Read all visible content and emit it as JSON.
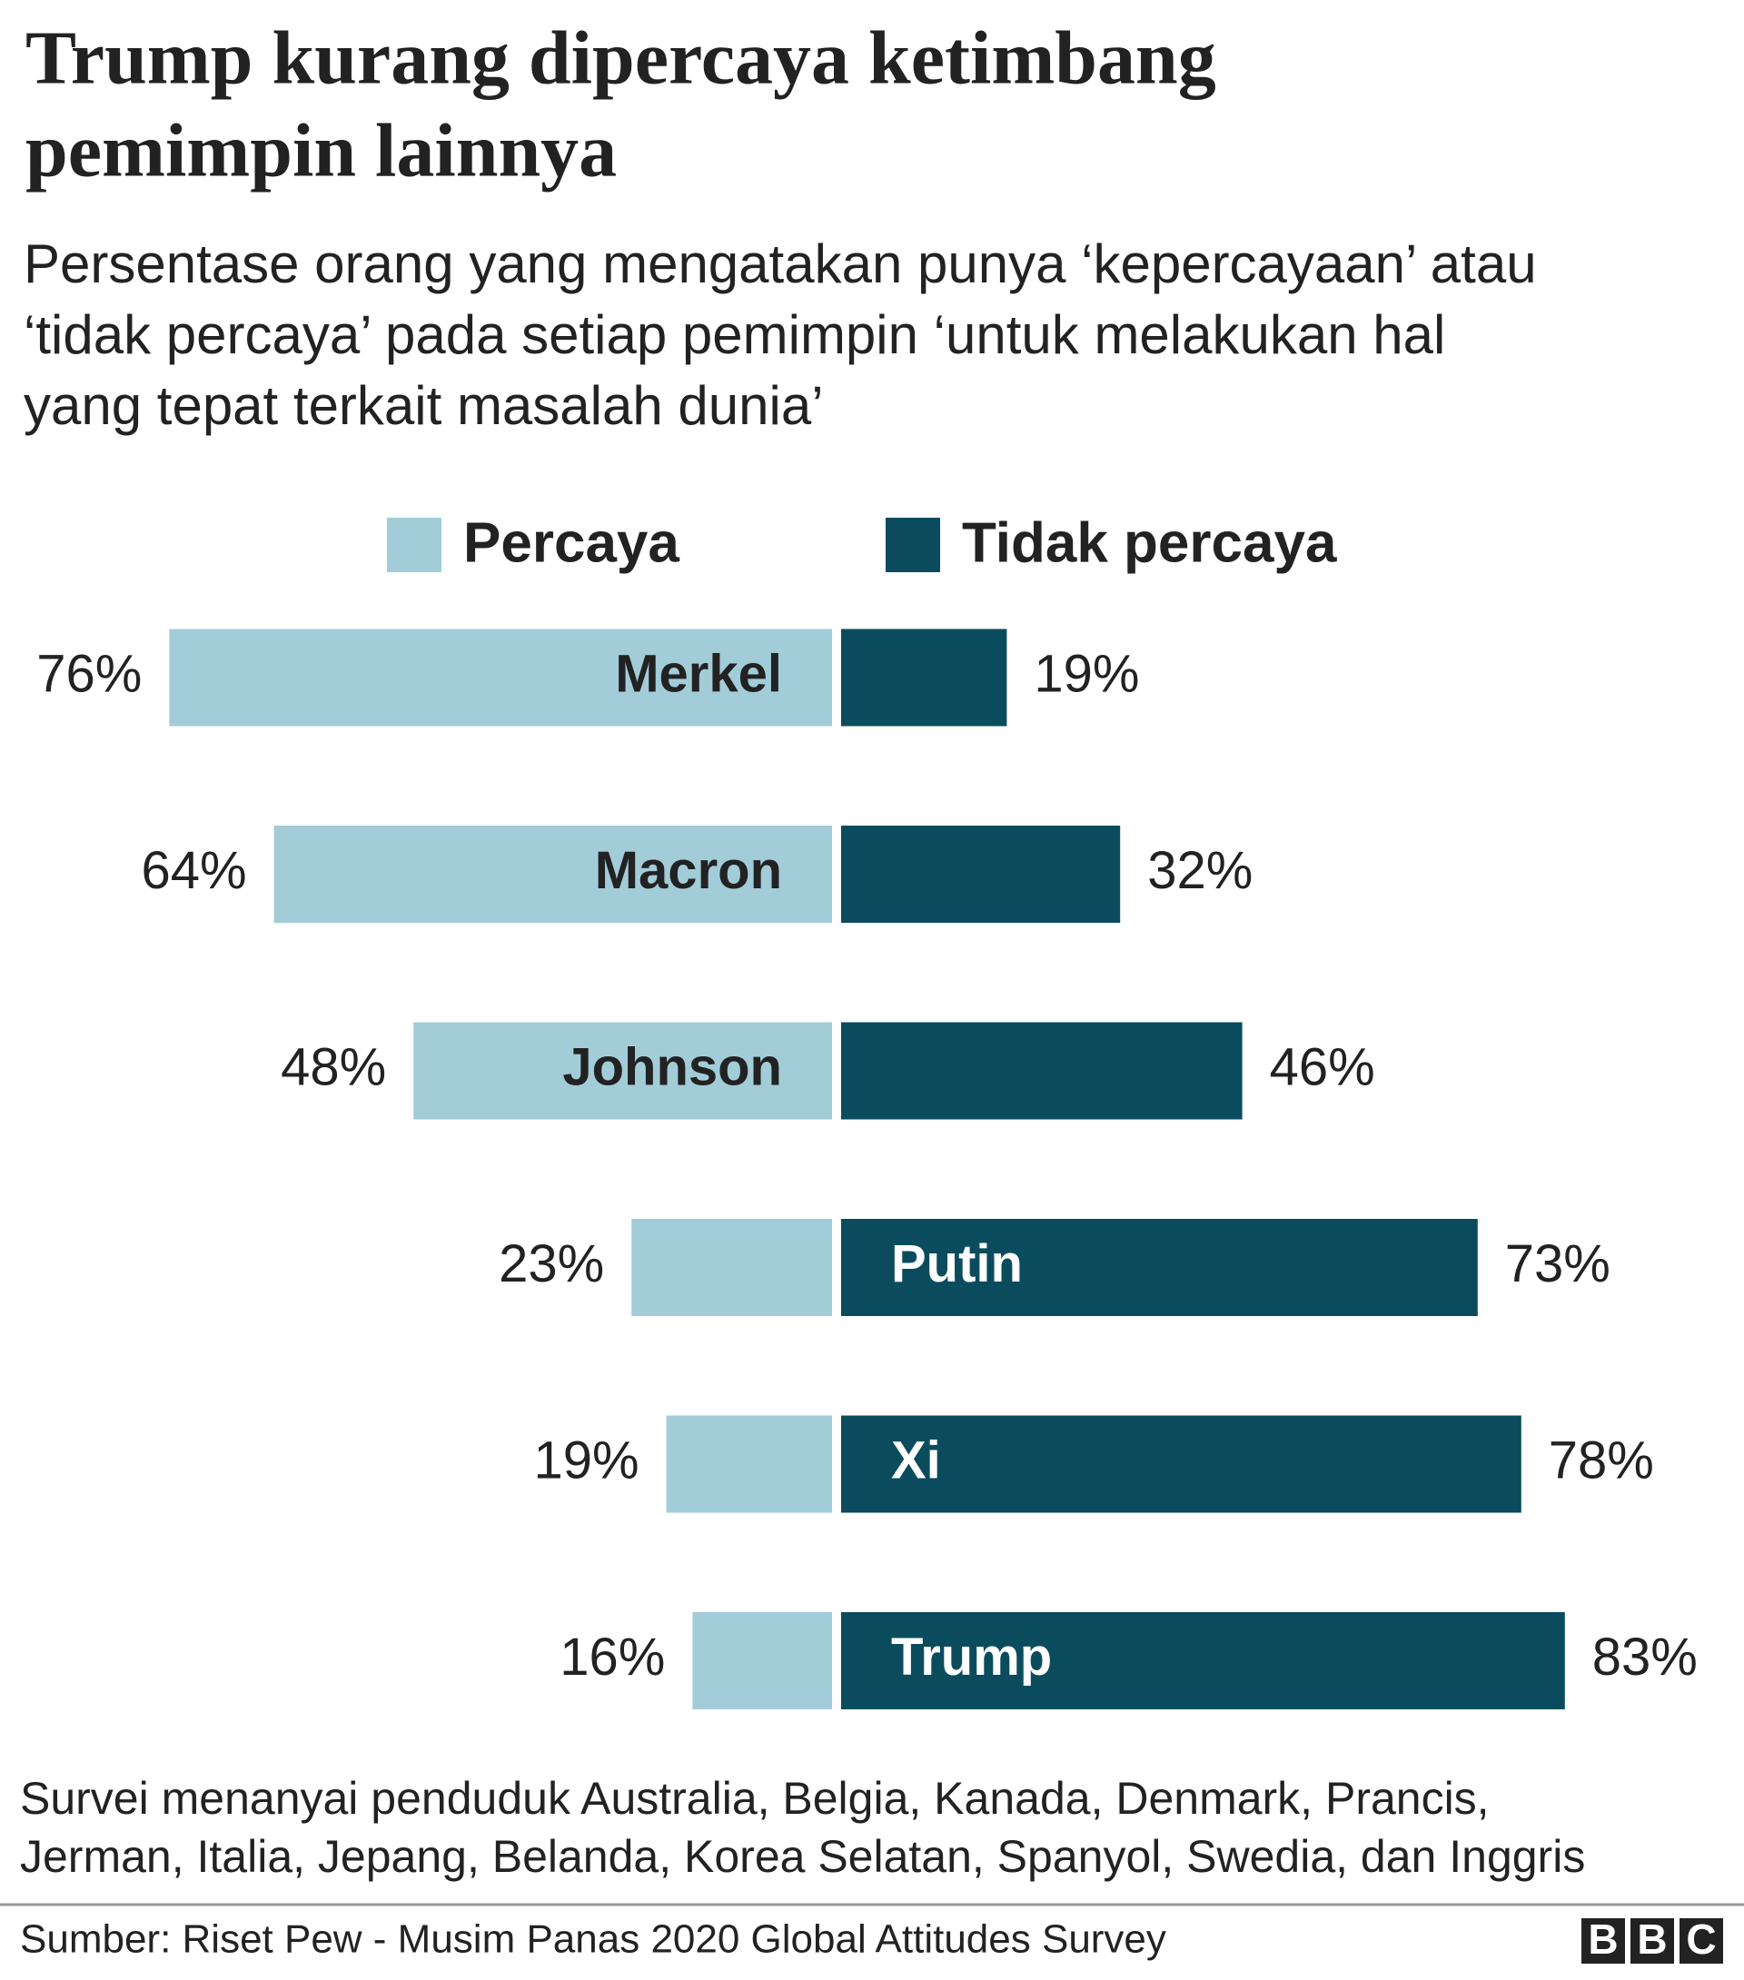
{
  "chart_data": {
    "type": "diverging-bar",
    "title": [
      "Trump kurang dipercaya ketimbang",
      "pemimpin lainnya"
    ],
    "subtitle": [
      "Persentase orang yang mengatakan punya ‘kepercayaan’ atau",
      "‘tidak percaya’ pada setiap pemimpin ‘untuk melakukan hal",
      "yang tepat terkait masalah dunia’"
    ],
    "categories": [
      "Merkel",
      "Macron",
      "Johnson",
      "Putin",
      "Xi",
      "Trump"
    ],
    "series": [
      {
        "name": "Percaya",
        "color": "#a3ccd9",
        "values": [
          76,
          64,
          48,
          23,
          19,
          16
        ],
        "value_labels": [
          "76%",
          "64%",
          "48%",
          "23%",
          "19%",
          "16%"
        ]
      },
      {
        "name": "Tidak percaya",
        "color": "#0a4c5e",
        "values": [
          19,
          32,
          46,
          73,
          78,
          83
        ],
        "value_labels": [
          "19%",
          "32%",
          "46%",
          "73%",
          "78%",
          "83%"
        ]
      }
    ],
    "note": [
      "Survei menanyai penduduk Australia, Belgia, Kanada, Denmark, Prancis,",
      "Jerman, Italia, Jepang, Belanda, Korea Selatan, Spanyol, Swedia, dan Inggris"
    ],
    "source": "Sumber: Riset Pew - Musim Panas 2020 Global Attitudes Survey",
    "logo": [
      "B",
      "B",
      "C"
    ]
  }
}
